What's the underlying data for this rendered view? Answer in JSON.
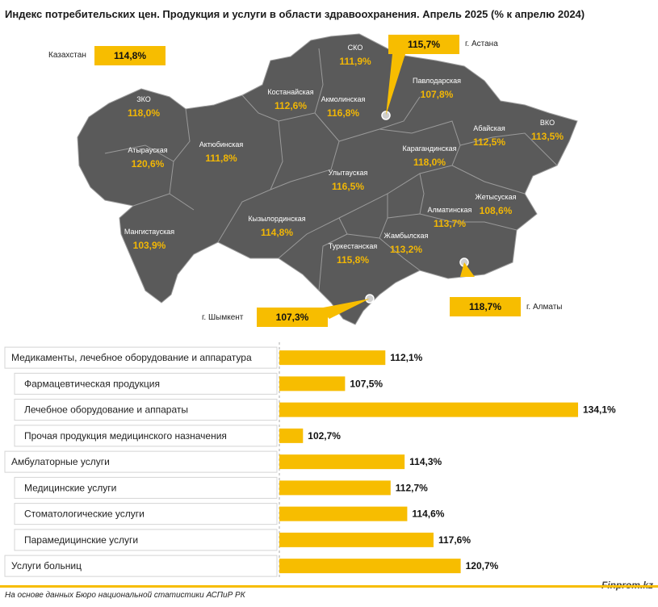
{
  "title": "Индекс потребительских цен. Продукция и услуги в области здравоохранения. Апрель 2025 (% к апрелю 2024)",
  "colors": {
    "map_fill": "#5a5a5a",
    "border": "#9a9a9a",
    "accent": "#f7bd00"
  },
  "callouts": {
    "kazakhstan": {
      "label": "Казахстан",
      "value": "114,8%"
    },
    "astana": {
      "label": "г. Астана",
      "value": "115,7%"
    },
    "shymkent": {
      "label": "г. Шымкент",
      "value": "107,3%"
    },
    "almaty": {
      "label": "г. Алматы",
      "value": "118,7%"
    }
  },
  "regions": [
    {
      "name": "СКО",
      "value": "111,9%"
    },
    {
      "name": "ЗКО",
      "value": "118,0%"
    },
    {
      "name": "Костанайская",
      "value": "112,6%"
    },
    {
      "name": "Акмолинская",
      "value": "116,8%"
    },
    {
      "name": "Павлодарская",
      "value": "107,8%"
    },
    {
      "name": "Атырауская",
      "value": "120,6%"
    },
    {
      "name": "Актюбинская",
      "value": "111,8%"
    },
    {
      "name": "Карагандинская",
      "value": "118,0%"
    },
    {
      "name": "Абайская",
      "value": "112,5%"
    },
    {
      "name": "ВКО",
      "value": "113,5%"
    },
    {
      "name": "Улытауская",
      "value": "116,5%"
    },
    {
      "name": "Жетысуская",
      "value": "108,6%"
    },
    {
      "name": "Мангистауская",
      "value": "103,9%"
    },
    {
      "name": "Кызылординская",
      "value": "114,8%"
    },
    {
      "name": "Алматинская",
      "value": "113,7%"
    },
    {
      "name": "Жамбылская",
      "value": "113,2%"
    },
    {
      "name": "Туркестанская",
      "value": "115,8%"
    }
  ],
  "chart_data": {
    "type": "bar",
    "orientation": "horizontal",
    "baseline": 100,
    "categories": [
      "Медикаменты, лечебное оборудование и аппаратура",
      "Фармацевтическая продукция",
      "Лечебное оборудование и аппараты",
      "Прочая продукция медицинского назначения",
      "Амбулаторные услуги",
      "Медицинские услуги",
      "Стоматологические услуги",
      "Парамедицинские услуги",
      "Услуги больниц"
    ],
    "values": [
      112.1,
      107.5,
      134.1,
      102.7,
      114.3,
      112.7,
      114.6,
      117.6,
      120.7
    ],
    "value_labels": [
      "112,1%",
      "107,5%",
      "134,1%",
      "102,7%",
      "114,3%",
      "112,7%",
      "114,6%",
      "117,6%",
      "120,7%"
    ],
    "subcategory": [
      false,
      true,
      true,
      true,
      false,
      true,
      true,
      true,
      false
    ]
  },
  "footer": {
    "source": "На основе данных Бюро национальной статистики АСПиР РК",
    "brand": "Finprom.kz"
  }
}
